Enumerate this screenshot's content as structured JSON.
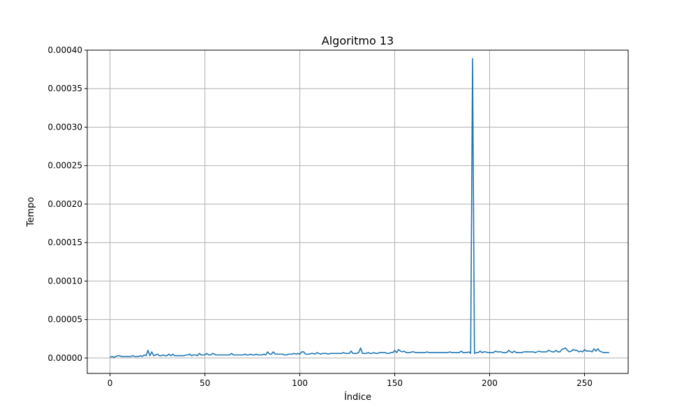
{
  "chart_data": {
    "type": "line",
    "title": "Algoritmo 13",
    "xlabel": "Índice",
    "ylabel": "Tempo",
    "xlim": [
      -12,
      273
    ],
    "ylim": [
      -2e-05,
      0.0004
    ],
    "x_ticks": [
      0,
      50,
      100,
      150,
      200,
      250
    ],
    "x_tick_labels": [
      "0",
      "50",
      "100",
      "150",
      "200",
      "250"
    ],
    "y_ticks": [
      0,
      5e-05,
      0.0001,
      0.00015,
      0.0002,
      0.00025,
      0.0003,
      0.00035,
      0.0004
    ],
    "y_tick_labels": [
      "0.00000",
      "0.00005",
      "0.00010",
      "0.00015",
      "0.00020",
      "0.00025",
      "0.00030",
      "0.00035",
      "0.00040"
    ],
    "grid": true,
    "colors": {
      "line": "#1f77b4",
      "grid": "#b0b0b0"
    },
    "series": [
      {
        "x_start": 0,
        "x_step": 1,
        "values": [
          1e-06,
          2e-06,
          1e-06,
          2e-06,
          3e-06,
          3e-06,
          2e-06,
          2e-06,
          2e-06,
          2e-06,
          2e-06,
          2e-06,
          3e-06,
          2e-06,
          2e-06,
          2e-06,
          3e-06,
          2e-06,
          4e-06,
          3e-06,
          1e-05,
          3e-06,
          8e-06,
          3e-06,
          4e-06,
          5e-06,
          3e-06,
          3e-06,
          4e-06,
          3e-06,
          3e-06,
          5e-06,
          3e-06,
          5e-06,
          3e-06,
          3e-06,
          3e-06,
          3e-06,
          3e-06,
          3e-06,
          4e-06,
          4e-06,
          5e-06,
          3e-06,
          4e-06,
          4e-06,
          3e-06,
          6e-06,
          4e-06,
          4e-06,
          4e-06,
          6e-06,
          4e-06,
          4e-06,
          6e-06,
          5e-06,
          4e-06,
          4e-06,
          4e-06,
          4e-06,
          4e-06,
          4e-06,
          4e-06,
          4e-06,
          6e-06,
          4e-06,
          4e-06,
          4e-06,
          4e-06,
          4e-06,
          4e-06,
          5e-06,
          4e-06,
          4e-06,
          5e-06,
          4e-06,
          4e-06,
          5e-06,
          4e-06,
          4e-06,
          4e-06,
          5e-06,
          4e-06,
          8e-06,
          5e-06,
          5e-06,
          8e-06,
          5e-06,
          5e-06,
          5e-06,
          5e-06,
          5e-06,
          4e-06,
          4e-06,
          5e-06,
          5e-06,
          5e-06,
          6e-06,
          5e-06,
          6e-06,
          5e-06,
          8e-06,
          8e-06,
          5e-06,
          5e-06,
          5e-06,
          6e-06,
          6e-06,
          5e-06,
          7e-06,
          6e-06,
          5e-06,
          6e-06,
          6e-06,
          6e-06,
          5e-06,
          6e-06,
          6e-06,
          6e-06,
          6e-06,
          6e-06,
          6e-06,
          6e-06,
          7e-06,
          6e-06,
          6e-06,
          6e-06,
          9e-06,
          6e-06,
          6e-06,
          6e-06,
          7e-06,
          1.3e-05,
          6e-06,
          6e-06,
          6e-06,
          7e-06,
          6e-06,
          6e-06,
          7e-06,
          6e-06,
          6e-06,
          7e-06,
          7e-06,
          7e-06,
          7e-06,
          6e-06,
          6e-06,
          7e-06,
          7e-06,
          1e-05,
          7e-06,
          1.1e-05,
          9e-06,
          8e-06,
          9e-06,
          7e-06,
          7e-06,
          7e-06,
          8e-06,
          8e-06,
          7e-06,
          7e-06,
          7e-06,
          7e-06,
          7e-06,
          7e-06,
          8e-06,
          7e-06,
          7e-06,
          7e-06,
          7e-06,
          7e-06,
          7e-06,
          7e-06,
          7e-06,
          7e-06,
          7e-06,
          7e-06,
          8e-06,
          7e-06,
          7e-06,
          7e-06,
          7e-06,
          7e-06,
          9e-06,
          7e-06,
          7e-06,
          7e-06,
          8e-06,
          6e-06,
          0.000389,
          6e-06,
          7e-06,
          7e-06,
          9e-06,
          7e-06,
          8e-06,
          8e-06,
          7e-06,
          7e-06,
          7e-06,
          7e-06,
          9e-06,
          8e-06,
          8e-06,
          8e-06,
          7e-06,
          7e-06,
          7e-06,
          1e-05,
          8e-06,
          7e-06,
          9e-06,
          7e-06,
          7e-06,
          7e-06,
          7e-06,
          8e-06,
          8e-06,
          8e-06,
          8e-06,
          8e-06,
          8e-06,
          7e-06,
          8e-06,
          9e-06,
          8e-06,
          8e-06,
          8e-06,
          8e-06,
          1e-05,
          9e-06,
          8e-06,
          8e-06,
          1e-05,
          8e-06,
          8e-06,
          1.1e-05,
          1.2e-05,
          1.3e-05,
          1e-05,
          8e-06,
          9e-06,
          1.1e-05,
          1e-05,
          1e-05,
          8e-06,
          9e-06,
          8e-06,
          1.1e-05,
          9e-06,
          9e-06,
          9e-06,
          8e-06,
          1.2e-05,
          9e-06,
          1.2e-05,
          9e-06,
          8e-06,
          7e-06,
          7e-06,
          7e-06,
          7e-06
        ]
      }
    ]
  }
}
